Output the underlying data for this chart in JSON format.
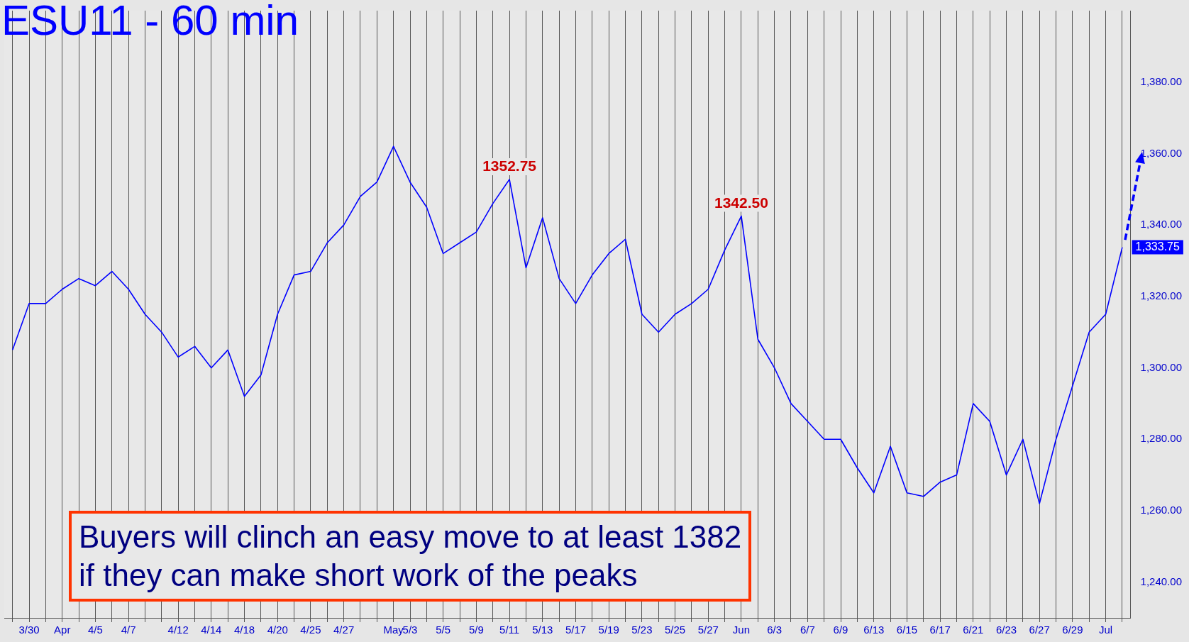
{
  "chart_data": {
    "type": "line",
    "title": "ESU11 - 60 min",
    "categories": [
      null,
      "3/30",
      null,
      "Apr",
      null,
      "4/5",
      null,
      "4/7",
      null,
      null,
      "4/12",
      null,
      "4/14",
      null,
      "4/18",
      null,
      "4/20",
      null,
      "4/25",
      null,
      "4/27",
      null,
      null,
      "May",
      "5/3",
      null,
      "5/5",
      null,
      "5/9",
      null,
      "5/11",
      null,
      "5/13",
      null,
      "5/17",
      null,
      "5/19",
      null,
      "5/23",
      null,
      "5/25",
      null,
      "5/27",
      null,
      "Jun",
      null,
      "6/3",
      null,
      "6/7",
      null,
      "6/9",
      null,
      "6/13",
      null,
      "6/15",
      null,
      "6/17",
      null,
      "6/21",
      null,
      "6/23",
      null,
      "6/27",
      null,
      "6/29",
      null,
      "Jul",
      null
    ],
    "series": [
      {
        "color": "#0000ff",
        "values": [
          1305,
          1318,
          1318,
          1322,
          1325,
          1323,
          1327,
          1322,
          1315,
          1310,
          1303,
          1306,
          1300,
          1305,
          1292,
          1298,
          1315,
          1326,
          1327,
          1335,
          1340,
          1348,
          1352,
          1362,
          1352,
          1345,
          1332,
          1335,
          1338,
          1346,
          1352.75,
          1328,
          1342,
          1325,
          1318,
          1326,
          1332,
          1336,
          1315,
          1310,
          1315,
          1318,
          1322,
          1333,
          1342.5,
          1308,
          1300,
          1290,
          1285,
          1280,
          1280,
          1272,
          1265,
          1278,
          1265,
          1264,
          1268,
          1270,
          1290,
          1285,
          1270,
          1280,
          1262,
          1280,
          1295,
          1310,
          1315,
          1333.75
        ]
      }
    ],
    "ylim": [
      1230,
      1400
    ],
    "yticks": [
      {
        "value": 1240,
        "label": "1,240.00"
      },
      {
        "value": 1260,
        "label": "1,260.00"
      },
      {
        "value": 1280,
        "label": "1,280.00"
      },
      {
        "value": 1300,
        "label": "1,300.00"
      },
      {
        "value": 1320,
        "label": "1,320.00"
      },
      {
        "value": 1340,
        "label": "1,340.00"
      },
      {
        "value": 1360,
        "label": "1,360.00"
      },
      {
        "value": 1380,
        "label": "1,380.00"
      }
    ],
    "grid": "x",
    "legend": false,
    "marker": "none",
    "line_style": "solid",
    "annotations": [
      {
        "text": "1352.75",
        "x": "5/11",
        "y": 1352.75
      },
      {
        "text": "1342.50",
        "x": "Jun",
        "y": 1342.5
      },
      "1,333.75",
      "Buyers will clinch an easy move to at least 1382\nif they can make short work of the peaks"
    ]
  }
}
